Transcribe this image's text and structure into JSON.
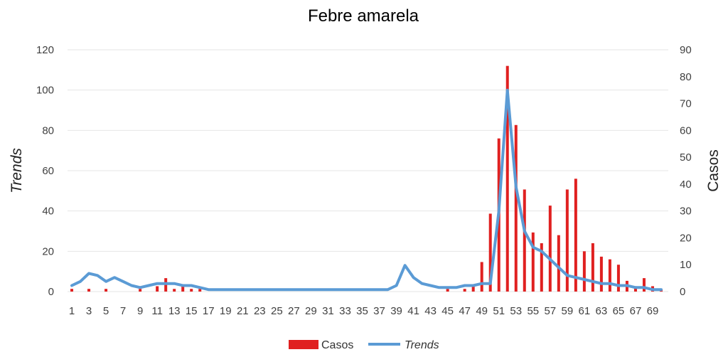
{
  "chart_data": {
    "type": "bar",
    "title": "Febre amarela",
    "ylabel": "Trends",
    "y2label": "Casos",
    "ylim": [
      0,
      120
    ],
    "y2lim": [
      0,
      90
    ],
    "yticks": [
      "0",
      "20",
      "40",
      "60",
      "80",
      "100",
      "120"
    ],
    "y2ticks": [
      "0",
      "10",
      "20",
      "30",
      "40",
      "50",
      "60",
      "70",
      "80",
      "90"
    ],
    "grid": true,
    "legend_position": "bottom",
    "x": [
      1,
      2,
      3,
      4,
      5,
      6,
      7,
      8,
      9,
      10,
      11,
      12,
      13,
      14,
      15,
      16,
      17,
      18,
      19,
      20,
      21,
      22,
      23,
      24,
      25,
      26,
      27,
      28,
      29,
      30,
      31,
      32,
      33,
      34,
      35,
      36,
      37,
      38,
      39,
      40,
      41,
      42,
      43,
      44,
      45,
      46,
      47,
      48,
      49,
      50,
      51,
      52,
      53,
      54,
      55,
      56,
      57,
      58,
      59,
      60,
      61,
      62,
      63,
      64,
      65,
      66,
      67,
      68,
      69,
      70
    ],
    "xtick_labels": [
      "1",
      "3",
      "5",
      "7",
      "9",
      "11",
      "13",
      "15",
      "17",
      "19",
      "21",
      "23",
      "25",
      "27",
      "29",
      "31",
      "33",
      "35",
      "37",
      "39",
      "41",
      "43",
      "45",
      "47",
      "49",
      "51",
      "53",
      "55",
      "57",
      "59",
      "61",
      "63",
      "65",
      "67",
      "69"
    ],
    "series": [
      {
        "name": "Casos",
        "kind": "bar",
        "axis": "right",
        "color": "#e02020",
        "values": [
          1,
          0,
          1,
          0,
          1,
          0,
          0,
          0,
          1,
          0,
          2,
          5,
          1,
          2,
          1,
          1,
          0,
          0,
          0,
          0,
          0,
          0,
          0,
          0,
          0,
          0,
          0,
          0,
          0,
          0,
          0,
          0,
          0,
          0,
          0,
          0,
          0,
          0,
          0,
          0,
          0,
          0,
          0,
          0,
          1,
          0,
          1,
          2,
          11,
          29,
          57,
          84,
          62,
          38,
          22,
          18,
          32,
          21,
          38,
          42,
          15,
          18,
          13,
          12,
          10,
          4,
          2,
          5,
          2,
          1
        ]
      },
      {
        "name": "Trends",
        "kind": "line",
        "axis": "left",
        "color": "#5b9bd5",
        "values": [
          3,
          5,
          9,
          8,
          5,
          7,
          5,
          3,
          2,
          3,
          4,
          4,
          4,
          3,
          3,
          2,
          1,
          1,
          1,
          1,
          1,
          1,
          1,
          1,
          1,
          1,
          1,
          1,
          1,
          1,
          1,
          1,
          1,
          1,
          1,
          1,
          1,
          1,
          3,
          13,
          7,
          4,
          3,
          2,
          2,
          2,
          3,
          3,
          4,
          4,
          40,
          100,
          52,
          30,
          22,
          20,
          16,
          12,
          8,
          7,
          6,
          5,
          4,
          4,
          3,
          3,
          2,
          2,
          1,
          1
        ]
      }
    ]
  }
}
